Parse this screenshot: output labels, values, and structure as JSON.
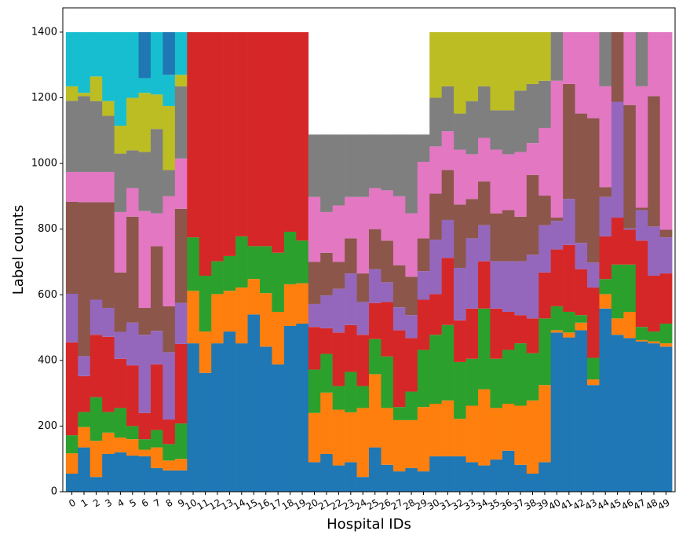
{
  "chart_data": {
    "type": "stacked_bar",
    "xlabel": "Hospital IDs",
    "ylabel": "Label counts",
    "categories": [
      "0",
      "1",
      "2",
      "3",
      "4",
      "5",
      "6",
      "7",
      "8",
      "9",
      "10",
      "11",
      "12",
      "13",
      "14",
      "15",
      "16",
      "17",
      "18",
      "19",
      "20",
      "21",
      "22",
      "23",
      "24",
      "25",
      "26",
      "27",
      "28",
      "29",
      "30",
      "31",
      "32",
      "33",
      "34",
      "35",
      "36",
      "37",
      "38",
      "39",
      "40",
      "41",
      "42",
      "43",
      "44",
      "45",
      "46",
      "47",
      "48",
      "49"
    ],
    "ylim": [
      0,
      1474
    ],
    "yticks": [
      0,
      200,
      400,
      600,
      800,
      1000,
      1200,
      1400
    ],
    "series": [
      {
        "color": "#1f77b4",
        "values": [
          55,
          135,
          45,
          115,
          120,
          110,
          108,
          72,
          65,
          65,
          452,
          362,
          452,
          488,
          452,
          540,
          442,
          388,
          505,
          512,
          90,
          115,
          80,
          90,
          45,
          135,
          82,
          62,
          72,
          62,
          108,
          108,
          108,
          90,
          80,
          98,
          125,
          82,
          55,
          90,
          485,
          470,
          492,
          325,
          558,
          478,
          468,
          458,
          452,
          442
        ]
      },
      {
        "color": "#ff7f0e",
        "values": [
          62,
          62,
          110,
          65,
          45,
          50,
          20,
          63,
          30,
          35,
          160,
          126,
          150,
          124,
          170,
          108,
          163,
          160,
          127,
          123,
          150,
          187,
          170,
          152,
          210,
          223,
          173,
          156,
          146,
          196,
          160,
          170,
          114,
          172,
          232,
          157,
          143,
          180,
          223,
          235,
          7,
          15,
          23,
          17,
          44,
          50,
          80,
          4,
          6,
          10
        ]
      },
      {
        "color": "#2ca02c",
        "values": [
          55,
          46,
          133,
          63,
          90,
          40,
          32,
          53,
          50,
          108,
          163,
          170,
          100,
          106,
          156,
          100,
          143,
          180,
          160,
          130,
          132,
          118,
          72,
          123,
          67,
          107,
          157,
          40,
          87,
          174,
          210,
          230,
          173,
          143,
          246,
          150,
          164,
          190,
          144,
          203,
          73,
          63,
          23,
          66,
          46,
          164,
          144,
          40,
          30,
          60
        ]
      },
      {
        "color": "#d62728",
        "values": [
          283,
          109,
          190,
          229,
          150,
          185,
          80,
          200,
          75,
          242,
          625,
          742,
          698,
          682,
          622,
          652,
          652,
          672,
          608,
          635,
          130,
          78,
          163,
          143,
          156,
          110,
          166,
          234,
          163,
          153,
          124,
          204,
          127,
          153,
          144,
          153,
          116,
          86,
          106,
          140,
          173,
          204,
          140,
          214,
          130,
          143,
          106,
          263,
          170,
          153
        ]
      },
      {
        "color": "#9467bd",
        "values": [
          148,
          61,
          107,
          88,
          82,
          130,
          238,
          102,
          205,
          125,
          0,
          0,
          0,
          0,
          0,
          0,
          0,
          0,
          0,
          0,
          70,
          100,
          133,
          157,
          100,
          103,
          60,
          70,
          70,
          87,
          166,
          116,
          160,
          214,
          110,
          144,
          154,
          164,
          194,
          144,
          87,
          140,
          80,
          76,
          120,
          353,
          4,
          93,
          150,
          110
        ]
      },
      {
        "color": "#8c564b",
        "values": [
          280,
          469,
          297,
          322,
          181,
          323,
          82,
          258,
          140,
          287,
          0,
          0,
          0,
          0,
          0,
          0,
          0,
          0,
          0,
          0,
          128,
          130,
          82,
          107,
          87,
          122,
          127,
          128,
          117,
          100,
          140,
          152,
          193,
          120,
          133,
          146,
          156,
          136,
          243,
          90,
          10,
          350,
          394,
          440,
          30,
          212,
          376,
          7,
          397,
          23
        ]
      },
      {
        "color": "#e377c2",
        "values": [
          91,
          92,
          92,
          92,
          184,
          87,
          295,
          100,
          335,
          153,
          0,
          0,
          0,
          0,
          0,
          0,
          0,
          0,
          0,
          0,
          198,
          124,
          172,
          126,
          233,
          125,
          153,
          210,
          193,
          233,
          144,
          118,
          167,
          136,
          133,
          194,
          170,
          197,
          97,
          206,
          417,
          158,
          248,
          262,
          307,
          0,
          222,
          370,
          195,
          602
        ]
      },
      {
        "color": "#7f7f7f",
        "values": [
          217,
          231,
          216,
          171,
          178,
          115,
          180,
          257,
          80,
          220,
          0,
          0,
          0,
          0,
          0,
          0,
          0,
          0,
          0,
          0,
          190,
          236,
          216,
          190,
          190,
          163,
          170,
          188,
          240,
          83,
          148,
          137,
          110,
          162,
          157,
          120,
          134,
          187,
          180,
          144,
          148,
          0,
          0,
          0,
          165,
          0,
          0,
          165,
          0,
          0
        ]
      },
      {
        "color": "#bcbd22",
        "values": [
          44,
          10,
          75,
          45,
          85,
          160,
          180,
          105,
          195,
          35,
          0,
          0,
          0,
          0,
          0,
          0,
          0,
          0,
          0,
          0,
          0,
          0,
          0,
          0,
          0,
          0,
          0,
          0,
          0,
          0,
          200,
          165,
          248,
          210,
          165,
          238,
          238,
          178,
          158,
          148,
          0,
          0,
          0,
          0,
          0,
          0,
          0,
          0,
          0,
          0
        ]
      },
      {
        "color": "#17becf",
        "values": [
          165,
          185,
          135,
          210,
          285,
          200,
          45,
          190,
          95,
          130,
          0,
          0,
          0,
          0,
          0,
          0,
          0,
          0,
          0,
          0,
          0,
          0,
          0,
          0,
          0,
          0,
          0,
          0,
          0,
          0,
          0,
          0,
          0,
          0,
          0,
          0,
          0,
          0,
          0,
          0,
          0,
          0,
          0,
          0,
          0,
          0,
          0,
          0,
          0,
          0
        ]
      },
      {
        "color": "#1f77b4",
        "values": [
          0,
          0,
          0,
          0,
          0,
          0,
          140,
          0,
          130,
          0,
          0,
          0,
          0,
          0,
          0,
          0,
          0,
          0,
          0,
          0,
          0,
          0,
          0,
          0,
          0,
          0,
          0,
          0,
          0,
          0,
          0,
          0,
          0,
          0,
          0,
          0,
          0,
          0,
          0,
          0,
          0,
          0,
          0,
          0,
          0,
          0,
          0,
          0,
          0,
          0
        ]
      }
    ]
  }
}
